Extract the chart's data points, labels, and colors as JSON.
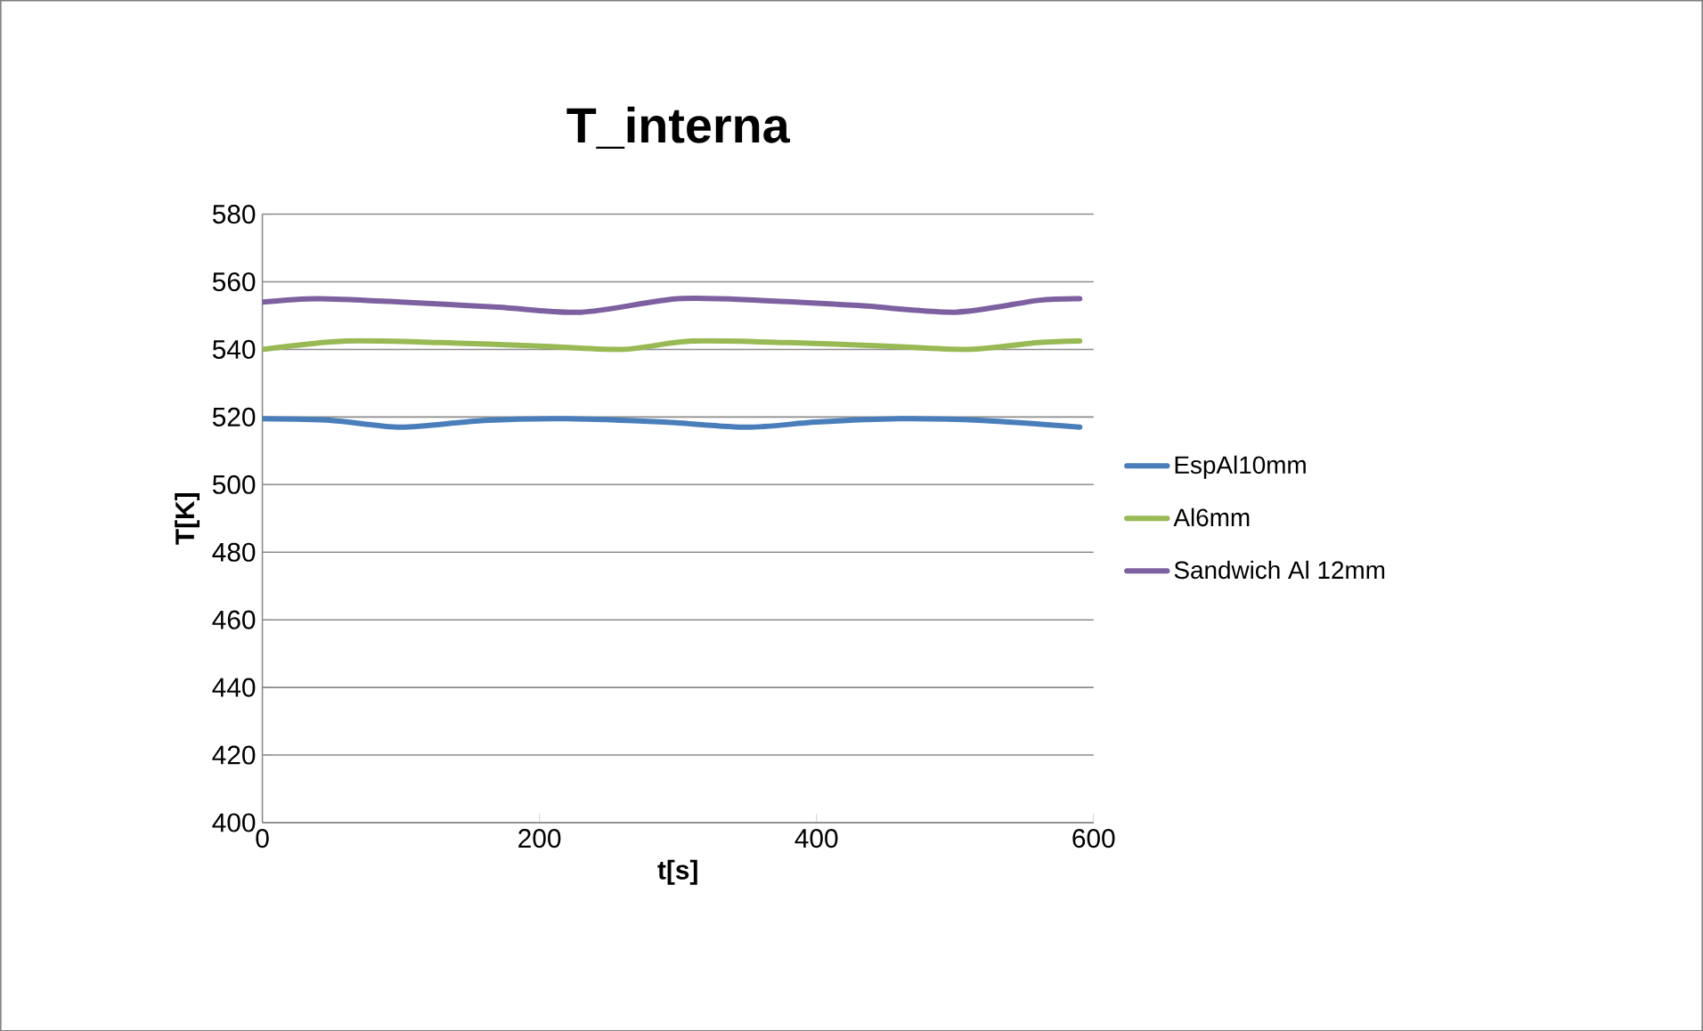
{
  "chart_data": {
    "type": "line",
    "title": "T_interna",
    "xlabel": "t[s]",
    "ylabel": "T[K]",
    "xlim": [
      0,
      600
    ],
    "xticks": [
      0,
      200,
      400,
      600
    ],
    "ylim": [
      400,
      580
    ],
    "yticks": [
      400,
      420,
      440,
      460,
      480,
      500,
      520,
      540,
      560,
      580
    ],
    "grid": "y",
    "legend": "right",
    "line_style": "solid",
    "marker": "none",
    "series": [
      {
        "name": "EspAl10mm",
        "color": "#4a7ebb",
        "x": [
          0,
          50,
          100,
          160,
          220,
          290,
          350,
          400,
          460,
          520,
          590
        ],
        "values": [
          519.5,
          519,
          517,
          519,
          519.5,
          518.5,
          517,
          518.5,
          519.5,
          519,
          517
        ]
      },
      {
        "name": "Al6mm",
        "color": "#98b954",
        "x": [
          0,
          60,
          130,
          200,
          260,
          310,
          380,
          450,
          510,
          560,
          590
        ],
        "values": [
          540,
          542.5,
          542,
          541,
          540,
          542.5,
          542,
          541,
          540,
          542,
          542.5
        ]
      },
      {
        "name": "Sandwich Al 12mm",
        "color": "#7d60a0",
        "x": [
          0,
          40,
          100,
          170,
          230,
          300,
          360,
          430,
          500,
          560,
          590
        ],
        "values": [
          554,
          555,
          554,
          552.5,
          551,
          555,
          554.5,
          553,
          551,
          554.5,
          555
        ]
      }
    ]
  }
}
